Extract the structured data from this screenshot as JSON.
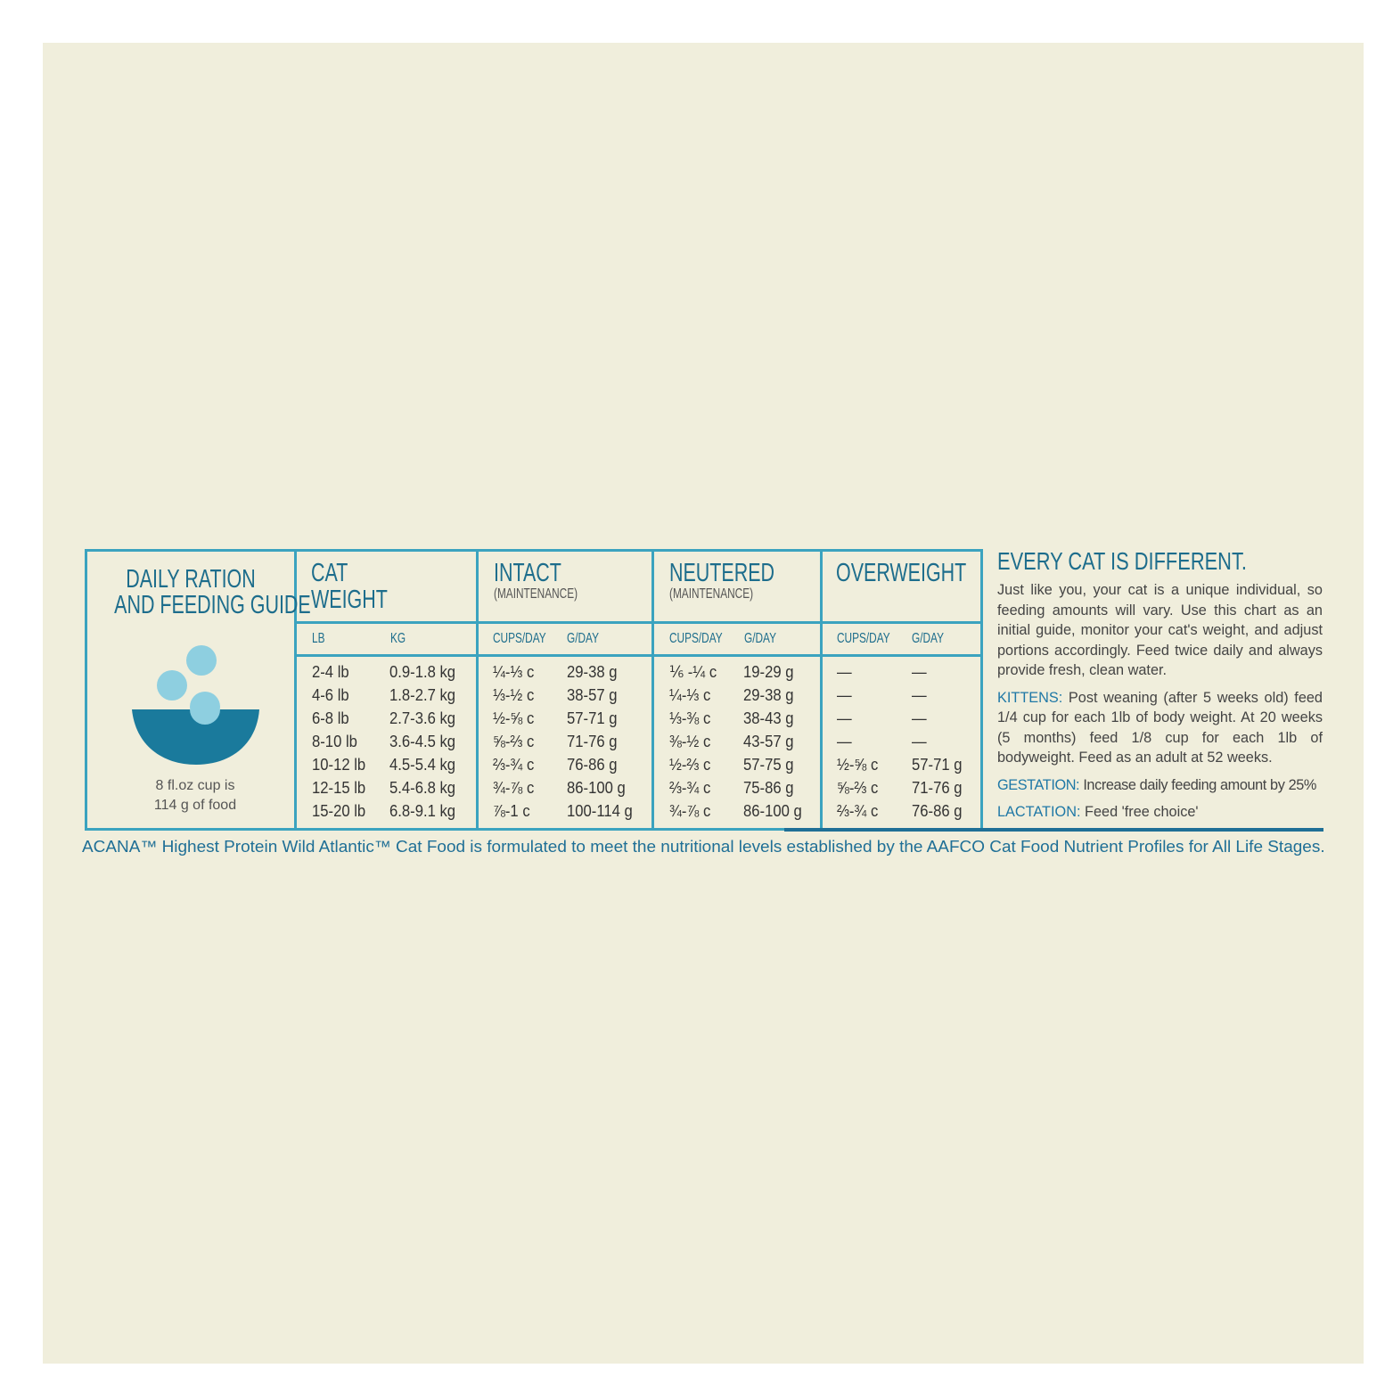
{
  "title": "DAILY RATION AND FEEDING GUIDE",
  "title_lines": [
    "DAILY RATION",
    "AND FEEDING GUIDE"
  ],
  "cup_note": [
    "8 fl.oz cup is",
    "114 g of food"
  ],
  "icon": "bowl-with-kibble-icon",
  "colors": {
    "background": "#f0eedc",
    "border": "#3ba3bf",
    "heading": "#1d6d8c",
    "bowl": "#1a7a9c",
    "kibble": "#8ecfe0"
  },
  "columns": [
    {
      "title": [
        "CAT",
        "WEIGHT"
      ],
      "note": "",
      "sub": [
        "LB",
        "KG"
      ]
    },
    {
      "title": [
        "INTACT"
      ],
      "note": "(MAINTENANCE)",
      "sub": [
        "CUPS/DAY",
        "G/DAY"
      ]
    },
    {
      "title": [
        "NEUTERED"
      ],
      "note": "(MAINTENANCE)",
      "sub": [
        "CUPS/DAY",
        "G/DAY"
      ]
    },
    {
      "title": [
        "OVERWEIGHT"
      ],
      "note": "",
      "sub": [
        "CUPS/DAY",
        "G/DAY"
      ]
    }
  ],
  "rows": [
    [
      "2-4 lb",
      "0.9-1.8 kg",
      "¼-⅓ c",
      "29-38 g",
      "⅙ -¼ c",
      "19-29 g",
      "—",
      "—"
    ],
    [
      "4-6 lb",
      "1.8-2.7 kg",
      "⅓-½ c",
      "38-57 g",
      "¼-⅓ c",
      "29-38 g",
      "—",
      "—"
    ],
    [
      "6-8 lb",
      "2.7-3.6 kg",
      "½-⅝ c",
      "57-71 g",
      "⅓-⅜ c",
      "38-43 g",
      "—",
      "—"
    ],
    [
      "8-10 lb",
      "3.6-4.5 kg",
      "⅝-⅔ c",
      "71-76 g",
      "⅜-½ c",
      "43-57 g",
      "—",
      "—"
    ],
    [
      "10-12 lb",
      "4.5-5.4 kg",
      "⅔-¾ c",
      "76-86 g",
      "½-⅔ c",
      "57-75 g",
      "½-⅝ c",
      "57-71 g"
    ],
    [
      "12-15 lb",
      "5.4-6.8 kg",
      "¾-⅞ c",
      "86-100 g",
      "⅔-¾ c",
      "75-86 g",
      "⅝-⅔ c",
      "71-76 g"
    ],
    [
      "15-20 lb",
      "6.8-9.1 kg",
      "⅞-1 c",
      "100-114 g",
      "¾-⅞ c",
      "86-100 g",
      "⅔-¾ c",
      "76-86 g"
    ]
  ],
  "side": {
    "heading": "EVERY CAT IS DIFFERENT.",
    "intro": "Just like you, your cat is a unique individual, so feeding amounts will vary. Use this chart as an initial guide, monitor your cat's weight, and adjust portions accordingly. Feed twice daily and always provide fresh, clean water.",
    "kittens_label": "KITTENS:",
    "kittens": "Post weaning (after 5 weeks old) feed 1/4 cup for each 1lb of body weight. At 20 weeks (5 months) feed 1/8 cup for each 1lb of bodyweight. Feed as an adult at 52 weeks.",
    "gestation_label": "GESTATION:",
    "gestation": "Increase daily feeding amount by 25%",
    "lactation_label": "LACTATION:",
    "lactation": "Feed 'free choice'"
  },
  "footer": "ACANA™ Highest Protein Wild Atlantic™ Cat Food is formulated to meet the nutritional levels established by the AAFCO Cat Food Nutrient Profiles for All Life Stages."
}
